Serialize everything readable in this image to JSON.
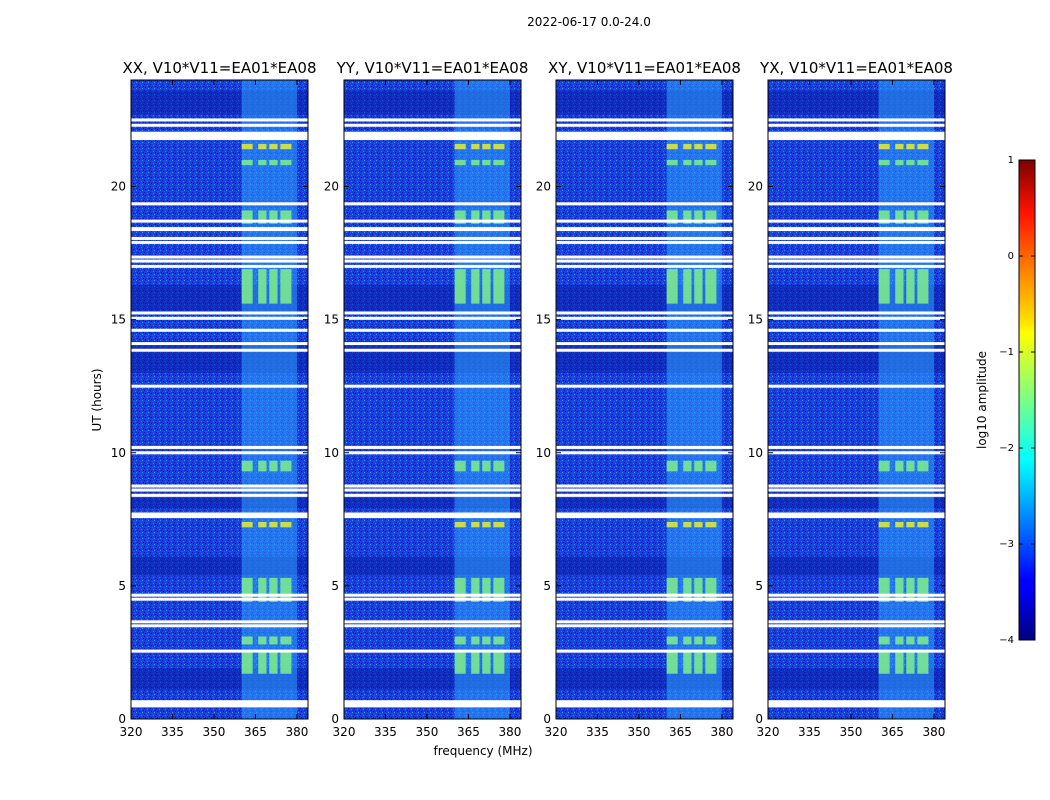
{
  "figure": {
    "title": "2022-06-17 0.0-24.0",
    "ylabel": "UT (hours)",
    "xlabel": "frequency (MHz)"
  },
  "chart_data": [
    {
      "type": "heatmap",
      "title": "XX, V10*V11=EA01*EA08",
      "xlabel": "frequency (MHz)",
      "ylabel": "UT (hours)",
      "xlim": [
        320,
        384
      ],
      "ylim": [
        0,
        24
      ],
      "xticks": [
        320,
        335,
        350,
        365,
        380
      ],
      "yticks": [
        0,
        5,
        10,
        15,
        20
      ],
      "rfi_band_mhz": [
        360,
        380
      ],
      "colormap": "jet",
      "color_range": [
        -4,
        1
      ]
    },
    {
      "type": "heatmap",
      "title": "YY, V10*V11=EA01*EA08",
      "xlabel": "frequency (MHz)",
      "ylabel": "UT (hours)",
      "xlim": [
        320,
        384
      ],
      "ylim": [
        0,
        24
      ],
      "xticks": [
        320,
        335,
        350,
        365,
        380
      ],
      "yticks": [
        0,
        5,
        10,
        15,
        20
      ],
      "rfi_band_mhz": [
        360,
        380
      ],
      "colormap": "jet",
      "color_range": [
        -4,
        1
      ]
    },
    {
      "type": "heatmap",
      "title": "XY, V10*V11=EA01*EA08",
      "xlabel": "frequency (MHz)",
      "ylabel": "UT (hours)",
      "xlim": [
        320,
        384
      ],
      "ylim": [
        0,
        24
      ],
      "xticks": [
        320,
        335,
        350,
        365,
        380
      ],
      "yticks": [
        0,
        5,
        10,
        15,
        20
      ],
      "rfi_band_mhz": [
        360,
        380
      ],
      "colormap": "jet",
      "color_range": [
        -4,
        1
      ]
    },
    {
      "type": "heatmap",
      "title": "YX, V10*V11=EA01*EA08",
      "xlabel": "frequency (MHz)",
      "ylabel": "UT (hours)",
      "xlim": [
        320,
        384
      ],
      "ylim": [
        0,
        24
      ],
      "xticks": [
        320,
        335,
        350,
        365,
        380
      ],
      "yticks": [
        0,
        5,
        10,
        15,
        20
      ],
      "rfi_band_mhz": [
        360,
        380
      ],
      "colormap": "jet",
      "color_range": [
        -4,
        1
      ]
    }
  ],
  "colorbar": {
    "label": "log10 amplitude",
    "ticks": [
      1,
      0,
      -1,
      -2,
      -3,
      -4
    ],
    "tick_labels": [
      "1",
      "0",
      "−1",
      "−2",
      "−3",
      "−4"
    ],
    "range": [
      -4,
      1
    ]
  },
  "flagged_hours": [
    0.55,
    0.65,
    2.55,
    3.5,
    3.65,
    4.5,
    4.65,
    7.6,
    7.7,
    8.4,
    8.6,
    8.75,
    10.0,
    10.2,
    12.5,
    13.85,
    14.1,
    14.6,
    15.05,
    15.25,
    17.0,
    17.2,
    17.35,
    17.9,
    18.05,
    18.4,
    18.7,
    19.35,
    21.8,
    22.0,
    22.3,
    22.5
  ]
}
